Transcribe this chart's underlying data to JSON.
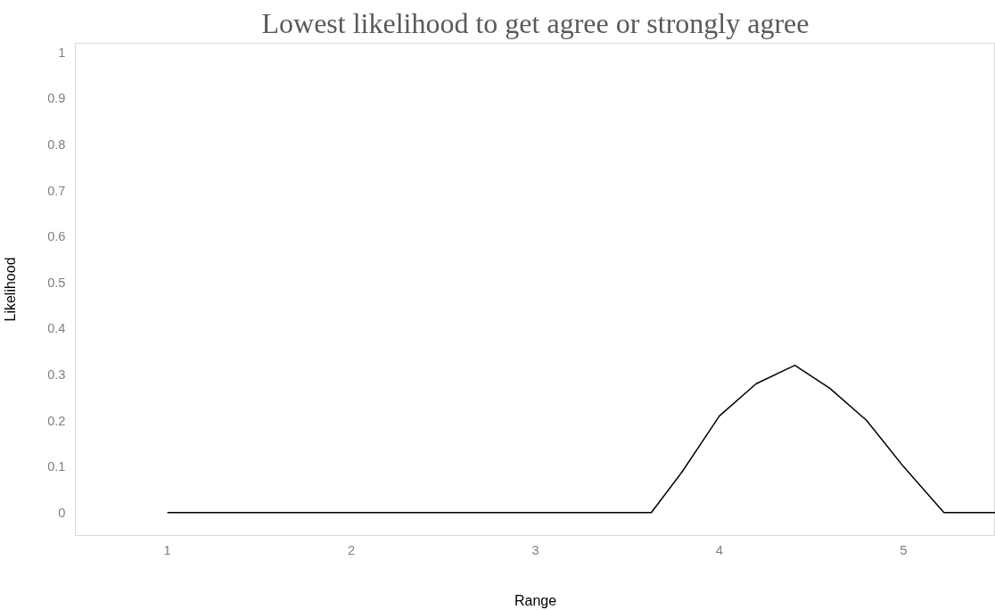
{
  "chart_data": {
    "type": "line",
    "title": "Lowest likelihood to get agree or strongly agree",
    "xlabel": "Range",
    "ylabel": "Likelihood",
    "x": [
      1,
      2,
      3,
      3.63,
      3.8,
      4,
      4.2,
      4.41,
      4.6,
      4.8,
      5,
      5.22,
      5.5
    ],
    "series": [
      {
        "color": "#000000",
        "values": [
          0,
          0,
          0,
          0,
          0.09,
          0.21,
          0.28,
          0.32,
          0.27,
          0.2,
          0.1,
          0,
          0
        ]
      }
    ],
    "xlim": [
      0.5,
      5.5
    ],
    "xticks": [
      1,
      2,
      3,
      4,
      5
    ],
    "ylim": [
      -0.05,
      1.02
    ],
    "yticks": [
      0,
      0.1,
      0.2,
      0.3,
      0.4,
      0.5,
      0.6,
      0.7,
      0.8,
      0.9,
      1
    ],
    "grid": false,
    "marker": "none",
    "line_style": "solid"
  }
}
